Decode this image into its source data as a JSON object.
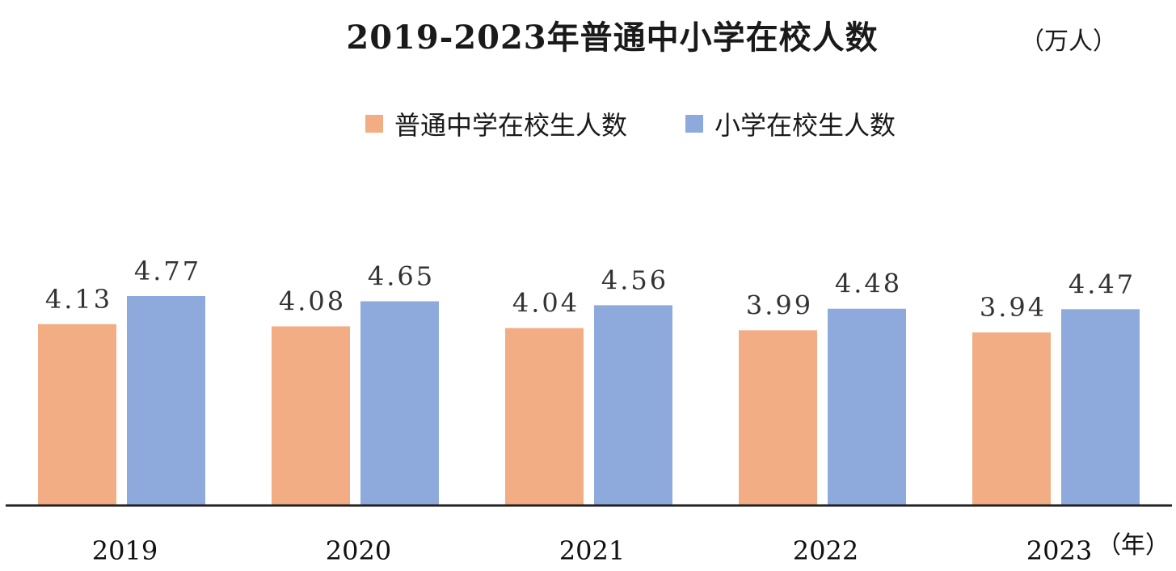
{
  "title": "2019-2023年普通中小学在校人数",
  "unit": "（万人）",
  "x_unit": "（年）",
  "colors": {
    "series1": "#f2ad84",
    "series2": "#8eaadc",
    "axis": "#222222"
  },
  "chart_data": {
    "type": "bar",
    "title": "2019-2023年普通中小学在校人数",
    "ylabel": "（万人）",
    "xlabel": "（年）",
    "categories": [
      "2019",
      "2020",
      "2021",
      "2022",
      "2023"
    ],
    "series": [
      {
        "name": "普通中学在校生人数",
        "values": [
          4.13,
          4.08,
          4.04,
          3.99,
          3.94
        ],
        "labels": [
          "4.13",
          "4.08",
          "4.04",
          "3.99",
          "3.94"
        ]
      },
      {
        "name": "小学在校生人数",
        "values": [
          4.77,
          4.65,
          4.56,
          4.48,
          4.47
        ],
        "labels": [
          "4.77",
          "4.65",
          "4.56",
          "4.48",
          "4.47"
        ]
      }
    ],
    "ylim": [
      0,
      4.77
    ],
    "grid": false,
    "legend": "top-center"
  }
}
